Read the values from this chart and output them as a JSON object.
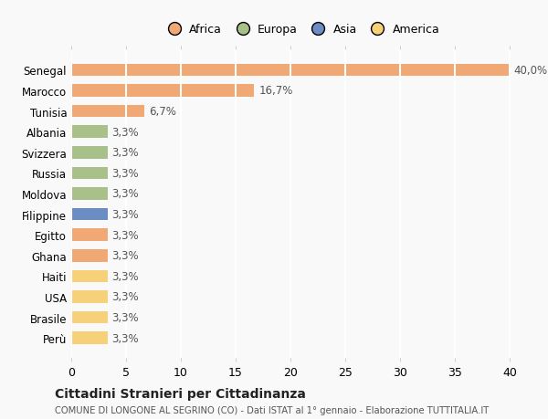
{
  "countries": [
    "Senegal",
    "Marocco",
    "Tunisia",
    "Albania",
    "Svizzera",
    "Russia",
    "Moldova",
    "Filippine",
    "Egitto",
    "Ghana",
    "Haiti",
    "USA",
    "Brasile",
    "Perù"
  ],
  "values": [
    40.0,
    16.7,
    6.7,
    3.3,
    3.3,
    3.3,
    3.3,
    3.3,
    3.3,
    3.3,
    3.3,
    3.3,
    3.3,
    3.3
  ],
  "labels": [
    "40,0%",
    "16,7%",
    "6,7%",
    "3,3%",
    "3,3%",
    "3,3%",
    "3,3%",
    "3,3%",
    "3,3%",
    "3,3%",
    "3,3%",
    "3,3%",
    "3,3%",
    "3,3%"
  ],
  "colors": [
    "#F0A875",
    "#F0A875",
    "#F0A875",
    "#A8C08A",
    "#A8C08A",
    "#A8C08A",
    "#A8C08A",
    "#6B8DC4",
    "#F0A875",
    "#F0A875",
    "#F7D07A",
    "#F7D07A",
    "#F7D07A",
    "#F7D07A"
  ],
  "legend_labels": [
    "Africa",
    "Europa",
    "Asia",
    "America"
  ],
  "legend_colors": [
    "#F0A875",
    "#A8C08A",
    "#6B8DC4",
    "#F7D07A"
  ],
  "xlim": [
    0,
    42
  ],
  "xticks": [
    0,
    5,
    10,
    15,
    20,
    25,
    30,
    35,
    40
  ],
  "title": "Cittadini Stranieri per Cittadinanza",
  "subtitle": "COMUNE DI LONGONE AL SEGRINO (CO) - Dati ISTAT al 1° gennaio - Elaborazione TUTTITALIA.IT",
  "background_color": "#f9f9f9",
  "bar_height": 0.6
}
